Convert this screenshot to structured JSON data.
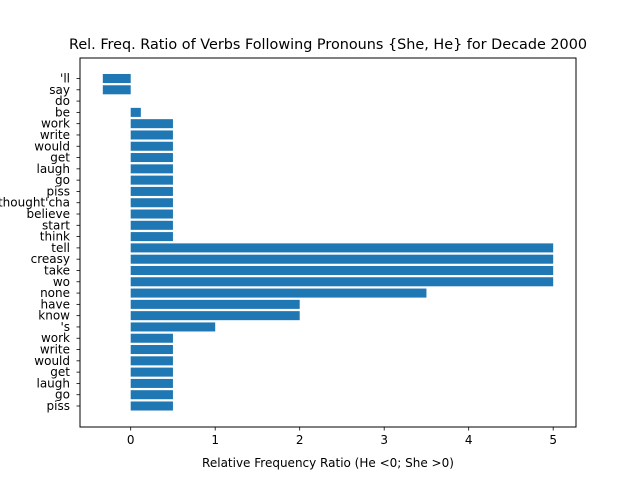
{
  "chart_data": {
    "type": "bar",
    "orientation": "horizontal",
    "title": "Rel. Freq. Ratio of Verbs Following Pronouns {She, He} for Decade 2000",
    "xlabel": "Relative Frequency Ratio (He <0; She >0)",
    "ylabel": "",
    "xlim": [
      -0.6,
      5.27
    ],
    "xticks": [
      0,
      1,
      2,
      3,
      4,
      5
    ],
    "grid": false,
    "bar_color": "#1f77b4",
    "categories": [
      "'ll",
      "say",
      "do",
      "be",
      "work",
      "write",
      "would",
      "get",
      "laugh",
      "go",
      "piss",
      "thought'cha",
      "believe",
      "start",
      "think",
      "tell",
      "creasy",
      "take",
      "wo",
      "none",
      "have",
      "know",
      "'s",
      "work",
      "write",
      "would",
      "get",
      "laugh",
      "go",
      "piss"
    ],
    "values": [
      -0.33,
      -0.33,
      0,
      0.12,
      0.5,
      0.5,
      0.5,
      0.5,
      0.5,
      0.5,
      0.5,
      0.5,
      0.5,
      0.5,
      0.5,
      5,
      5,
      5,
      5,
      3.5,
      2,
      2,
      1,
      0.5,
      0.5,
      0.5,
      0.5,
      0.5,
      0.5,
      0.5
    ]
  }
}
